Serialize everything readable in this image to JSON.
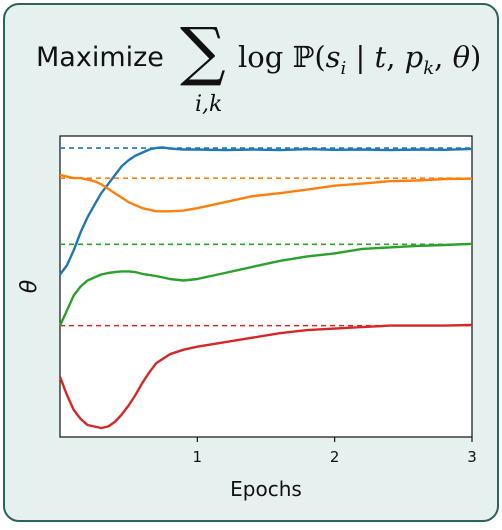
{
  "title": {
    "prefix": "Maximize",
    "operator": "∑",
    "subscript": "i,k",
    "log": "log",
    "prob": "ℙ(",
    "s": "s",
    "s_sub": "i",
    "bar": " | ",
    "t": "t",
    "comma1": ", ",
    "p": "p",
    "p_sub": "k",
    "comma2": ", ",
    "theta": "θ",
    "close": ")"
  },
  "chart_data": {
    "type": "line",
    "xlabel": "Epochs",
    "ylabel": "θ",
    "xlim": [
      0,
      3
    ],
    "ylim": [
      0,
      1
    ],
    "xticks": [
      "1",
      "2",
      "3"
    ],
    "grid": false,
    "series": [
      {
        "color": "#1f77b4",
        "target": 0.96,
        "x": [
          0,
          0.05,
          0.1,
          0.15,
          0.2,
          0.25,
          0.3,
          0.35,
          0.4,
          0.45,
          0.5,
          0.55,
          0.6,
          0.65,
          0.7,
          0.75,
          0.8,
          0.9,
          1.0,
          1.2,
          1.4,
          1.6,
          1.8,
          2.0,
          2.2,
          2.4,
          2.6,
          2.8,
          3.0
        ],
        "y": [
          0.54,
          0.57,
          0.62,
          0.68,
          0.73,
          0.77,
          0.81,
          0.84,
          0.87,
          0.9,
          0.92,
          0.935,
          0.945,
          0.955,
          0.96,
          0.962,
          0.958,
          0.955,
          0.955,
          0.953,
          0.955,
          0.953,
          0.956,
          0.954,
          0.955,
          0.953,
          0.955,
          0.954,
          0.957
        ]
      },
      {
        "color": "#ff7f0e",
        "target": 0.86,
        "x": [
          0,
          0.05,
          0.1,
          0.15,
          0.2,
          0.25,
          0.3,
          0.35,
          0.4,
          0.45,
          0.5,
          0.55,
          0.6,
          0.65,
          0.7,
          0.8,
          0.9,
          1.0,
          1.2,
          1.4,
          1.6,
          1.8,
          2.0,
          2.2,
          2.4,
          2.6,
          2.8,
          3.0
        ],
        "y": [
          0.87,
          0.865,
          0.86,
          0.86,
          0.855,
          0.85,
          0.84,
          0.825,
          0.81,
          0.795,
          0.78,
          0.77,
          0.76,
          0.755,
          0.75,
          0.75,
          0.752,
          0.76,
          0.78,
          0.8,
          0.81,
          0.822,
          0.835,
          0.842,
          0.85,
          0.852,
          0.857,
          0.858
        ]
      },
      {
        "color": "#2ca02c",
        "target": 0.64,
        "x": [
          0,
          0.05,
          0.1,
          0.15,
          0.2,
          0.25,
          0.3,
          0.35,
          0.4,
          0.45,
          0.5,
          0.55,
          0.6,
          0.7,
          0.8,
          0.9,
          1.0,
          1.2,
          1.4,
          1.6,
          1.8,
          2.0,
          2.2,
          2.4,
          2.6,
          2.8,
          3.0
        ],
        "y": [
          0.37,
          0.42,
          0.47,
          0.5,
          0.52,
          0.53,
          0.54,
          0.545,
          0.548,
          0.55,
          0.55,
          0.548,
          0.542,
          0.535,
          0.525,
          0.52,
          0.525,
          0.545,
          0.565,
          0.585,
          0.6,
          0.61,
          0.625,
          0.63,
          0.635,
          0.638,
          0.642
        ]
      },
      {
        "color": "#d62728",
        "target": 0.37,
        "x": [
          0,
          0.05,
          0.1,
          0.15,
          0.2,
          0.25,
          0.3,
          0.35,
          0.4,
          0.45,
          0.5,
          0.55,
          0.6,
          0.65,
          0.7,
          0.8,
          0.9,
          1.0,
          1.2,
          1.4,
          1.6,
          1.8,
          2.0,
          2.2,
          2.4,
          2.6,
          2.8,
          3.0
        ],
        "y": [
          0.2,
          0.14,
          0.09,
          0.06,
          0.04,
          0.035,
          0.03,
          0.035,
          0.05,
          0.075,
          0.105,
          0.14,
          0.18,
          0.215,
          0.245,
          0.275,
          0.29,
          0.3,
          0.315,
          0.33,
          0.345,
          0.355,
          0.36,
          0.365,
          0.37,
          0.37,
          0.37,
          0.372
        ]
      }
    ]
  }
}
